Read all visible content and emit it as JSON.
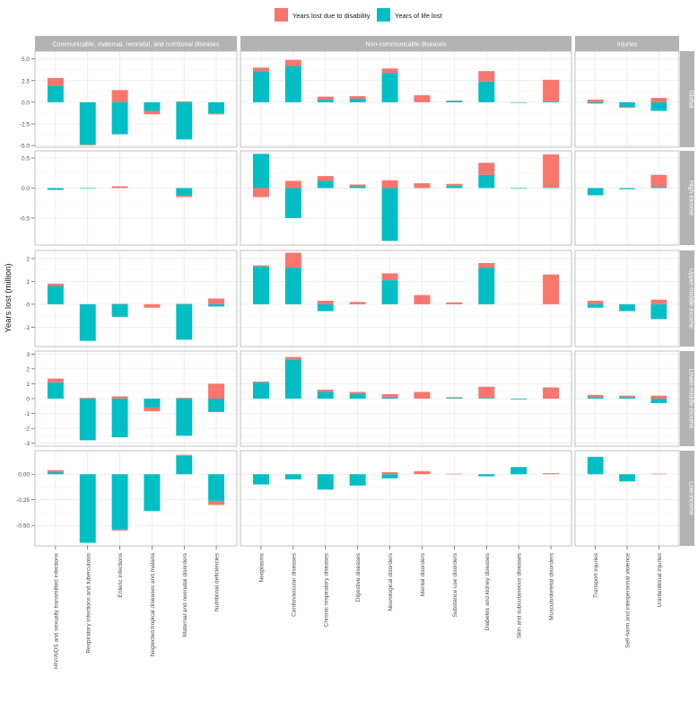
{
  "chart_data": {
    "type": "bar",
    "stacked": true,
    "ylabel": "Years lost (million)",
    "legend": {
      "position": "top",
      "entries": [
        {
          "key": "yld",
          "label": "Years lost due to disability",
          "color": "#F8766D"
        },
        {
          "key": "yll",
          "label": "Years of life lost",
          "color": "#00BFC4"
        }
      ]
    },
    "facet_columns": [
      {
        "label": "Communicable, maternal, neonatal, and nutritional diseases",
        "categories": [
          "HIV/AIDS and sexually transmitted infections",
          "Respiratory infections and tuberculosis",
          "Enteric infections",
          "Neglected tropical diseases and malaria",
          "Maternal and neonatal disorders",
          "Nutritional deficiencies"
        ]
      },
      {
        "label": "Non-communicable diseases",
        "categories": [
          "Neoplasms",
          "Cardiovascular diseases",
          "Chronic respiratory diseases",
          "Digestive diseases",
          "Neurological disorders",
          "Mental disorders",
          "Substance use disorders",
          "Diabetes and kidney diseases",
          "Skin and subcutaneous diseases",
          "Musculoskeletal disorders"
        ]
      },
      {
        "label": "Injuries",
        "categories": [
          "Transport injuries",
          "Self-harm and interpersonal violence",
          "Unintentional injuries"
        ]
      }
    ],
    "facet_rows": [
      {
        "label": "Global",
        "ylim": [
          -5.2,
          5.9
        ],
        "yticks": [
          -5.0,
          -2.5,
          0.0,
          2.5,
          5.0
        ],
        "tick_labels": [
          "-5.0",
          "-2.5",
          "0.0",
          "2.5",
          "5.0"
        ],
        "yll": [
          1.9,
          -4.9,
          -3.7,
          -1.0,
          -4.3,
          -1.3,
          3.6,
          4.2,
          0.3,
          0.4,
          3.4,
          0.0,
          0.15,
          2.4,
          -0.02,
          0.1,
          -0.15,
          -0.55,
          -1.0
        ],
        "yld": [
          0.9,
          -0.05,
          1.4,
          -0.4,
          0.1,
          -0.1,
          0.4,
          0.7,
          0.35,
          0.3,
          0.5,
          0.8,
          0.05,
          1.2,
          0.0,
          2.5,
          0.3,
          -0.1,
          0.5
        ]
      },
      {
        "label": "High-income",
        "ylim": [
          -0.95,
          0.62
        ],
        "yticks": [
          -0.5,
          0.0,
          0.5
        ],
        "tick_labels": [
          "-0.5",
          "0.0",
          "0.5"
        ],
        "yll": [
          -0.03,
          -0.01,
          0.0,
          0.0,
          -0.12,
          0.0,
          0.57,
          -0.5,
          0.12,
          0.03,
          -0.88,
          0.0,
          0.04,
          0.22,
          -0.01,
          0.01,
          -0.12,
          -0.02,
          0.02
        ],
        "yld": [
          0.0,
          0.0,
          0.03,
          0.0,
          -0.03,
          0.0,
          -0.15,
          0.12,
          0.08,
          0.03,
          0.13,
          0.08,
          0.03,
          0.2,
          0.0,
          0.55,
          0.0,
          0.0,
          0.2
        ]
      },
      {
        "label": "Upper-middle-income",
        "ylim": [
          -1.85,
          2.35
        ],
        "yticks": [
          -1,
          0,
          1,
          2
        ],
        "tick_labels": [
          "-1",
          "0",
          "1",
          "2"
        ],
        "yll": [
          0.8,
          -1.6,
          -0.55,
          0.0,
          -1.55,
          -0.1,
          1.65,
          1.6,
          -0.3,
          0.0,
          1.05,
          0.0,
          0.0,
          1.6,
          0.0,
          0.0,
          -0.15,
          -0.3,
          -0.65
        ],
        "yld": [
          0.1,
          0.0,
          0.02,
          -0.15,
          0.02,
          0.25,
          0.05,
          0.65,
          0.15,
          0.1,
          0.3,
          0.4,
          0.08,
          0.2,
          0.0,
          1.3,
          0.15,
          0.0,
          0.2
        ]
      },
      {
        "label": "Lower-middle-income",
        "ylim": [
          -3.2,
          3.2
        ],
        "yticks": [
          -3,
          -2,
          -1,
          0,
          1,
          2,
          3
        ],
        "tick_labels": [
          "-3",
          "-2",
          "-1",
          "0",
          "1",
          "2",
          "3"
        ],
        "yll": [
          1.1,
          -2.8,
          -2.6,
          -0.6,
          -2.5,
          -0.9,
          1.1,
          2.6,
          0.45,
          0.3,
          0.1,
          0.0,
          0.05,
          0.05,
          -0.05,
          0.0,
          0.1,
          0.1,
          -0.3
        ],
        "yld": [
          0.25,
          0.05,
          0.15,
          -0.25,
          0.05,
          1.0,
          0.05,
          0.2,
          0.15,
          0.15,
          0.2,
          0.45,
          0.05,
          0.75,
          0.0,
          0.75,
          0.15,
          0.1,
          0.2
        ]
      },
      {
        "label": "Low-income",
        "ylim": [
          -0.7,
          0.23
        ],
        "yticks": [
          -0.5,
          -0.25,
          0.0
        ],
        "tick_labels": [
          "-0.50",
          "-0.25",
          "0.00"
        ],
        "yll": [
          0.02,
          -0.67,
          -0.54,
          -0.36,
          0.18,
          -0.26,
          -0.1,
          -0.05,
          -0.15,
          -0.11,
          -0.04,
          0.0,
          0.0,
          -0.02,
          0.07,
          0.0,
          0.17,
          -0.07,
          0.0
        ],
        "yld": [
          0.02,
          0.0,
          -0.01,
          0.0,
          0.01,
          -0.04,
          0.0,
          0.0,
          0.0,
          0.0,
          0.02,
          0.03,
          0.005,
          0.0,
          0.0,
          0.01,
          0.0,
          0.0,
          0.005
        ]
      }
    ]
  }
}
